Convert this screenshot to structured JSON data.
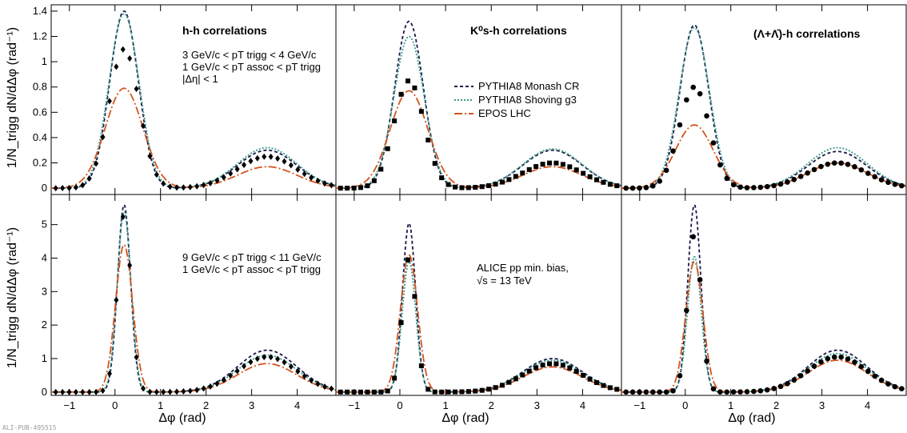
{
  "figure": {
    "footer": "ALI-PUB-495515",
    "ylabel_top": "1/N_trigg dN/dΔφ (rad⁻¹)",
    "ylabel_bottom": "1/N_trigg dN/dΔφ (rad⁻¹)",
    "xlabel": "Δφ (rad)"
  },
  "colors": {
    "monash": "#1a1a4a",
    "shoving": "#3a9a8a",
    "epos": "#d4541e",
    "data": "#000000",
    "band": "#c8c8c8"
  },
  "legend": {
    "placement": "top-middle panel",
    "items": [
      "PYTHIA8 Monash CR",
      "PYTHIA8 Shoving g3",
      "EPOS LHC"
    ]
  },
  "annotations": {
    "hh_title": "h-h correlations",
    "k0_title": "K⁰s-h correlations",
    "lambda_title": "(Λ+Λ̄)-h correlations",
    "low_trig_line": "3 GeV/c < pT trigg < 4 GeV/c",
    "assoc_line": "1 GeV/c < pT assoc < pT trigg",
    "eta_line": "|Δη| < 1",
    "high_trig_line": "9 GeV/c < pT trigg < 11 GeV/c",
    "high_assoc_line": "1 GeV/c < pT assoc < pT trigg",
    "system_line1": "ALICE pp min. bias,",
    "system_line2": "√s = 13 TeV"
  },
  "chart_data": [
    {
      "type": "line",
      "panel": "h-h, low pT",
      "xlim": [
        -1.4,
        4.85
      ],
      "ylim": [
        -0.05,
        1.45
      ],
      "yticks": [
        0,
        0.2,
        0.4,
        0.6,
        0.8,
        1.0,
        1.2,
        1.4
      ],
      "ytick_labels": [
        "0",
        "0.2",
        "0.4",
        "0.6",
        "0.8",
        "1",
        "1.2",
        "1.4"
      ],
      "xticks": [
        -1,
        0,
        1,
        2,
        3,
        4
      ],
      "xtick_labels": [
        "−1",
        "0",
        "1",
        "2",
        "3",
        "4"
      ],
      "marker": "diamond",
      "peaks": {
        "monash": [
          1.4,
          0.3
        ],
        "shoving": [
          1.38,
          0.32
        ],
        "epos": [
          0.79,
          0.17
        ],
        "data": [
          1.1,
          0.25
        ]
      }
    },
    {
      "type": "line",
      "panel": "K0s-h, low pT",
      "xlim": [
        -1.4,
        4.85
      ],
      "ylim": [
        -0.05,
        1.45
      ],
      "xticks": [
        -1,
        0,
        1,
        2,
        3,
        4
      ],
      "xtick_labels": [
        "−1",
        "0",
        "1",
        "2",
        "3",
        "4"
      ],
      "marker": "square",
      "peaks": {
        "monash": [
          1.32,
          0.3
        ],
        "shoving": [
          1.2,
          0.31
        ],
        "epos": [
          0.77,
          0.17
        ],
        "data": [
          0.85,
          0.2
        ]
      }
    },
    {
      "type": "line",
      "panel": "Lambda-h, low pT",
      "xlim": [
        -1.4,
        4.85
      ],
      "ylim": [
        -0.05,
        1.45
      ],
      "xticks": [
        -1,
        0,
        1,
        2,
        3,
        4
      ],
      "xtick_labels": [
        "−1",
        "0",
        "1",
        "2",
        "3",
        "4"
      ],
      "marker": "circle",
      "peaks": {
        "monash": [
          1.29,
          0.29
        ],
        "shoving": [
          1.27,
          0.32
        ],
        "epos": [
          0.5,
          0.2
        ],
        "data": [
          0.8,
          0.2
        ]
      }
    },
    {
      "type": "line",
      "panel": "h-h, high pT",
      "xlim": [
        -1.4,
        4.85
      ],
      "ylim": [
        -0.1,
        5.9
      ],
      "yticks": [
        0,
        1,
        2,
        3,
        4,
        5
      ],
      "ytick_labels": [
        "0",
        "1",
        "2",
        "3",
        "4",
        "5"
      ],
      "xticks": [
        -1,
        0,
        1,
        2,
        3,
        4
      ],
      "xtick_labels": [
        "−1",
        "0",
        "1",
        "2",
        "3",
        "4"
      ],
      "marker": "diamond",
      "peaks": {
        "monash": [
          5.6,
          1.25
        ],
        "shoving": [
          5.4,
          1.1
        ],
        "epos": [
          4.4,
          0.85
        ],
        "data": [
          5.3,
          1.05
        ]
      }
    },
    {
      "type": "line",
      "panel": "K0s-h, high pT",
      "xlim": [
        -1.4,
        4.85
      ],
      "ylim": [
        -0.1,
        5.9
      ],
      "xticks": [
        -1,
        0,
        1,
        2,
        3,
        4
      ],
      "xtick_labels": [
        "−1",
        "0",
        "1",
        "2",
        "3",
        "4"
      ],
      "marker": "square",
      "peaks": {
        "monash": [
          5.05,
          1.0
        ],
        "shoving": [
          3.9,
          0.95
        ],
        "epos": [
          4.1,
          0.75
        ],
        "data": [
          4.0,
          0.85
        ]
      }
    },
    {
      "type": "line",
      "panel": "Lambda-h, high pT",
      "xlim": [
        -1.4,
        4.85
      ],
      "ylim": [
        -0.1,
        5.9
      ],
      "xticks": [
        -1,
        0,
        1,
        2,
        3,
        4
      ],
      "xtick_labels": [
        "−1",
        "0",
        "1",
        "2",
        "3",
        "4"
      ],
      "marker": "circle",
      "peaks": {
        "monash": [
          5.6,
          1.25
        ],
        "shoving": [
          4.05,
          1.15
        ],
        "epos": [
          3.9,
          0.95
        ],
        "data": [
          4.7,
          1.05
        ]
      }
    }
  ]
}
